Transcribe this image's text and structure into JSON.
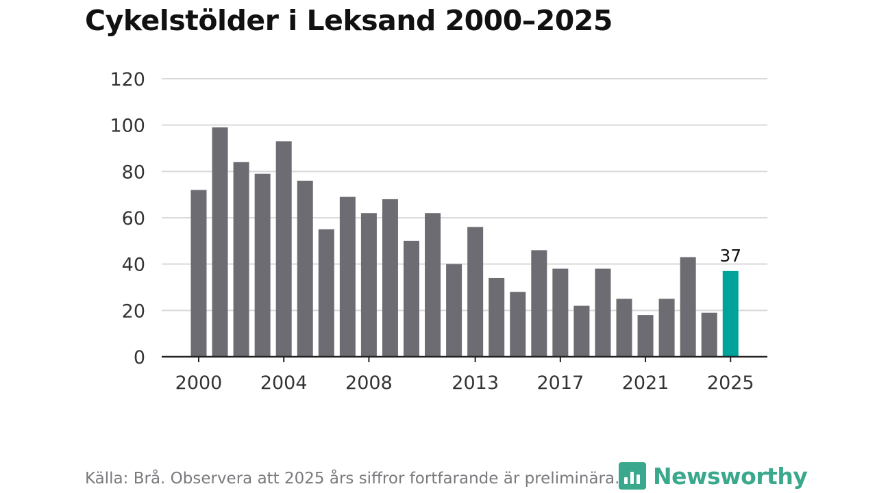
{
  "title": "Cykelstölder i Leksand 2000–2025",
  "source": "Källa: Brå. Observera att 2025 års siffror fortfarande är preliminära.",
  "brand": {
    "name": "Newsworthy",
    "icon": "bar-chart-pin-icon",
    "color": "#3aa88c"
  },
  "colors": {
    "bar": "#6d6c72",
    "highlight": "#00a39a",
    "grid": "#d9d9d9",
    "axis": "#222222",
    "text": "#333333"
  },
  "chart_data": {
    "type": "bar",
    "title": "Cykelstölder i Leksand 2000–2025",
    "xlabel": "",
    "ylabel": "",
    "ylim": [
      0,
      120
    ],
    "yticks": [
      0,
      20,
      40,
      60,
      80,
      100,
      120
    ],
    "xticks": [
      "2000",
      "2004",
      "2008",
      "2013",
      "2017",
      "2021",
      "2025"
    ],
    "categories": [
      "2000",
      "2001",
      "2002",
      "2003",
      "2004",
      "2005",
      "2006",
      "2007",
      "2008",
      "2009",
      "2010",
      "2011",
      "2012",
      "2013",
      "2014",
      "2015",
      "2016",
      "2017",
      "2018",
      "2019",
      "2020",
      "2021",
      "2022",
      "2023",
      "2024",
      "2025"
    ],
    "values": [
      72,
      99,
      84,
      79,
      93,
      76,
      55,
      69,
      62,
      68,
      50,
      62,
      40,
      56,
      34,
      28,
      46,
      38,
      22,
      38,
      25,
      18,
      25,
      43,
      19,
      37
    ],
    "highlight": {
      "category": "2025",
      "label": "37"
    }
  }
}
